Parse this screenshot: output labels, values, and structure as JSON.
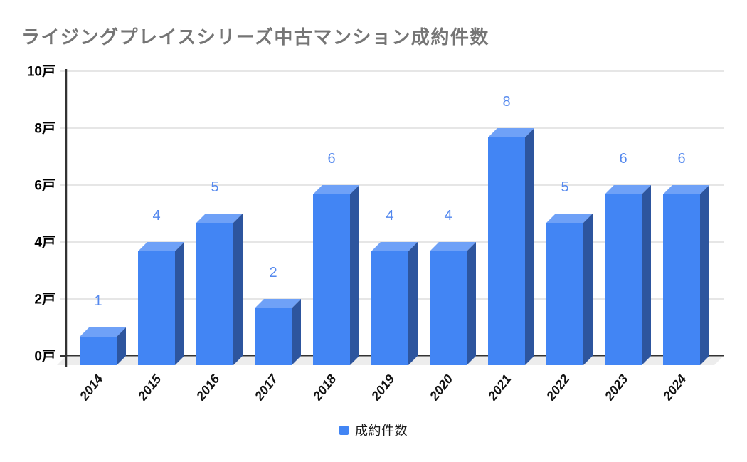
{
  "window": {
    "background": "#ffffff"
  },
  "chart_data": {
    "type": "bar",
    "subtype": "3d-column",
    "title": "ライジングプレイスシリーズ中古マンション成約件数",
    "categories": [
      "2014",
      "2015",
      "2016",
      "2017",
      "2018",
      "2019",
      "2020",
      "2021",
      "2022",
      "2023",
      "2024"
    ],
    "series": [
      {
        "name": "成約件数",
        "values": [
          1,
          4,
          5,
          2,
          6,
          4,
          4,
          8,
          5,
          6,
          6
        ]
      }
    ],
    "annotations": [
      "1",
      "4",
      "5",
      "2",
      "6",
      "4",
      "4",
      "8",
      "5",
      "6",
      "6"
    ],
    "unit_suffix": "戸",
    "y_ticks": [
      0,
      2,
      4,
      6,
      8,
      10
    ],
    "y_tick_labels": [
      "0戸",
      "2戸",
      "4戸",
      "6戸",
      "8戸",
      "10戸"
    ],
    "ylim": [
      0,
      10
    ],
    "grid": true,
    "x_label_rotation_deg": -52,
    "legend_position": "bottom",
    "colors": {
      "bar_front": "#4285F4",
      "bar_top": "#6FA1F7",
      "bar_side": "#2D559E",
      "annotation_text": "#5488EE",
      "gridline": "#cccccc",
      "axis_line": "#333333",
      "baseline": "#333333",
      "y_label_text": "#000000",
      "x_label_text": "#111111",
      "title_text": "#757575",
      "floor": "#ededed",
      "legend_swatch": "#4285F4",
      "legend_text": "#1a1a1a"
    }
  },
  "legend": {
    "series_label": "成約件数"
  }
}
